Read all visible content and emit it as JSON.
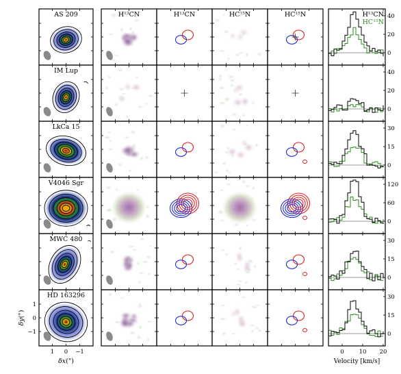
{
  "figure": {
    "column_titles": {
      "col2": {
        "base": "H",
        "sup": "13",
        "rest": "CN"
      },
      "col3": {
        "base": "H",
        "sup": "13",
        "rest": "CN"
      },
      "col4": {
        "base": "HC",
        "sup": "15",
        "rest": "N"
      },
      "col5": {
        "base": "HC",
        "sup": "15",
        "rest": "N"
      }
    },
    "rows": [
      {
        "name": "AS 209",
        "spec_ticks": [
          "40",
          "20",
          "0"
        ],
        "h13_contours": true,
        "hc15_contours": true,
        "cross": false
      },
      {
        "name": "IM Lup",
        "spec_ticks": [
          "40",
          "20",
          "0"
        ],
        "h13_contours": false,
        "hc15_contours": false,
        "cross": true
      },
      {
        "name": "LkCa 15",
        "spec_ticks": [
          "30",
          "15",
          "0"
        ],
        "h13_contours": true,
        "hc15_contours": true,
        "cross": false
      },
      {
        "name": "V4046 Sgr",
        "spec_ticks": [
          "120",
          "60",
          "0"
        ],
        "h13_contours": true,
        "hc15_contours": true,
        "cross": false
      },
      {
        "name": "MWC 480",
        "spec_ticks": [
          "30",
          "15",
          "0"
        ],
        "h13_contours": true,
        "hc15_contours": true,
        "cross": false
      },
      {
        "name": "HD 163296",
        "spec_ticks": [
          "30",
          "15",
          "0"
        ],
        "h13_contours": true,
        "hc15_contours": true,
        "cross": false
      }
    ],
    "map_axis": {
      "ylabel_base": "δy",
      "ylabel_unit": "(\")",
      "xlabel_base": "δx",
      "xlabel_unit": "(\")",
      "ticks": [
        "1",
        "0",
        "−1"
      ]
    },
    "spectrum_axis": {
      "xlabel": "Velocity [km/s]",
      "xticks": [
        "0",
        "10",
        "20"
      ],
      "legend": [
        {
          "label_base": "H",
          "label_sup": "13",
          "label_rest": "CN",
          "color": "#000000"
        },
        {
          "label_base": "HC",
          "label_sup": "15",
          "label_rest": "N",
          "color": "#2c8a1e"
        }
      ]
    },
    "colors": {
      "red_contour": "#e0201c",
      "blue_contour": "#1f2bd6",
      "green_spectrum": "#2c8a1e",
      "baseline": "#9a9a9a"
    }
  }
}
